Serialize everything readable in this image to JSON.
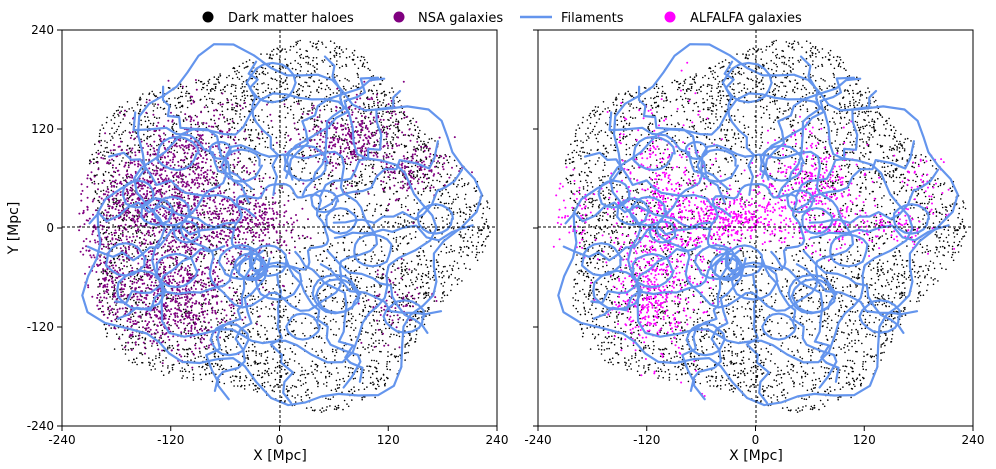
{
  "chart_data": [
    {
      "type": "scatter",
      "panel": "left",
      "title": "",
      "xlabel": "X [Mpc]",
      "ylabel": "Y [Mpc]",
      "xlim": [
        -240,
        240
      ],
      "ylim": [
        -240,
        240
      ],
      "xticks": [
        "-240",
        "-120",
        "0",
        "120",
        "240"
      ],
      "yticks": [
        "240",
        "120",
        "0",
        "-120",
        "-240"
      ],
      "grid": false,
      "series": [
        {
          "name": "Dark matter haloes",
          "color": "#000000",
          "kind": "points",
          "approx_count": 4500,
          "distribution": "disk of radius ~225 Mpc, denser toward the rim"
        },
        {
          "name": "NSA galaxies",
          "color": "#800080",
          "kind": "points",
          "approx_count": 3000,
          "distribution": "concentrated at X from -220 to 0, peak near (-110, 0), plus a clump near (80, 110)"
        },
        {
          "name": "Filaments",
          "color": "#6495ED",
          "kind": "lines",
          "distribution": "web of curved filaments spanning the whole disk"
        }
      ]
    },
    {
      "type": "scatter",
      "panel": "right",
      "title": "",
      "xlabel": "X [Mpc]",
      "ylabel": "",
      "xlim": [
        -240,
        240
      ],
      "ylim": [
        -240,
        240
      ],
      "xticks": [
        "-240",
        "-120",
        "0",
        "120",
        "240"
      ],
      "yticks": [],
      "grid": false,
      "series": [
        {
          "name": "Dark matter haloes",
          "color": "#000000",
          "kind": "points",
          "approx_count": 4500,
          "distribution": "disk of radius ~225 Mpc, denser toward the rim"
        },
        {
          "name": "ALFALFA galaxies",
          "color": "#FF00FF",
          "kind": "points",
          "approx_count": 1800,
          "distribution": "band around Y = 0 from X = -220 to 200, concentrated near (-100, 0) and (60, 50)"
        },
        {
          "name": "Filaments",
          "color": "#6495ED",
          "kind": "lines",
          "distribution": "web of curved filaments spanning the whole disk"
        }
      ]
    }
  ],
  "legend": {
    "placement": "top-center",
    "entries": [
      {
        "label": "Dark matter haloes",
        "color": "#000000",
        "marker": "dot"
      },
      {
        "label": "NSA galaxies",
        "color": "#800080",
        "marker": "dot"
      },
      {
        "label": "Filaments",
        "color": "#6495ED",
        "marker": "line"
      },
      {
        "label": "ALFALFA galaxies",
        "color": "#FF00FF",
        "marker": "dot"
      }
    ]
  }
}
